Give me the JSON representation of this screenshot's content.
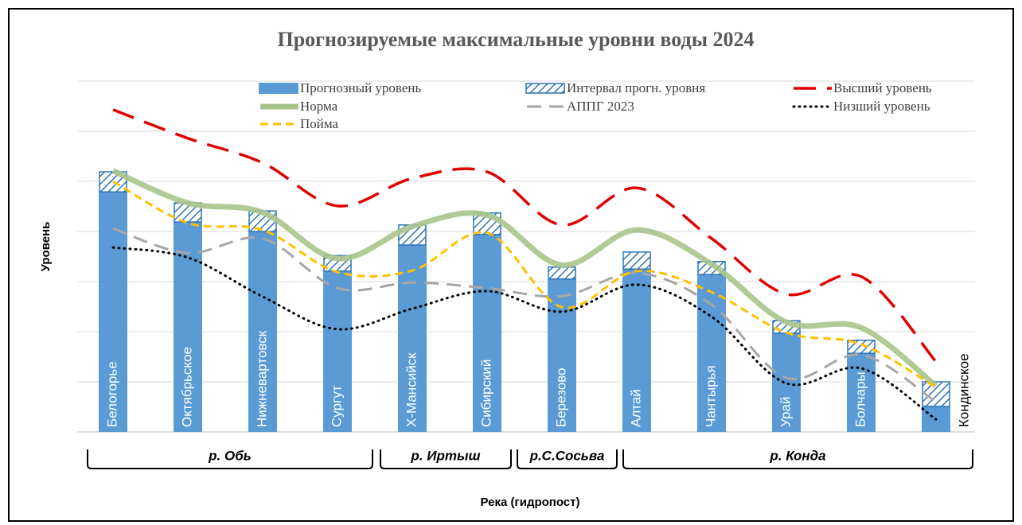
{
  "chart_data": {
    "type": "bar",
    "title": "Прогнозируемые максимальные уровни воды 2024",
    "x_label": "Река (гидропост)",
    "y_label": "Уровень",
    "categories": [
      "Белогорье",
      "Октябрьское",
      "Нижневартовск",
      "Сургут",
      "Х-Мансийск",
      "Сибирский",
      "Березово",
      "Алтай",
      "Чантырья",
      "Урай",
      "Болчары",
      "Кондинское"
    ],
    "groups": [
      {
        "label": "р. Обь"
      },
      {
        "label": "р. Иртыш"
      },
      {
        "label": "р.С.Сосьва"
      },
      {
        "label": "р. Конда"
      }
    ],
    "ylim": [
      0,
      7
    ],
    "yticks": [
      0,
      1,
      2,
      3,
      4,
      5,
      6,
      7
    ],
    "grid": true,
    "series": [
      {
        "name": "Прогнозный уровень",
        "type": "bar",
        "color": "#5b9bd5",
        "values": [
          4.79,
          4.19,
          4.0,
          3.21,
          3.73,
          3.94,
          3.05,
          3.25,
          3.14,
          1.97,
          1.57,
          0.51
        ]
      },
      {
        "name": "Интервал прогн. уровня",
        "type": "stacked-bar",
        "color": "#2e75b6",
        "values": [
          0.4,
          0.38,
          0.41,
          0.31,
          0.4,
          0.43,
          0.24,
          0.34,
          0.26,
          0.25,
          0.26,
          0.49
        ]
      },
      {
        "name": "Высший уровень",
        "type": "line",
        "color": "#e00000",
        "values": [
          6.43,
          5.86,
          5.37,
          4.51,
          5.06,
          5.19,
          4.13,
          4.87,
          3.86,
          2.75,
          3.1,
          1.4
        ]
      },
      {
        "name": "Норма",
        "type": "line",
        "color": "#a9c48b",
        "values": [
          5.21,
          4.57,
          4.38,
          3.46,
          4.1,
          4.33,
          3.33,
          4.03,
          3.35,
          2.19,
          2.08,
          0.92
        ]
      },
      {
        "name": "АППГ 2023",
        "type": "line",
        "color": "#a6a6a6",
        "values": [
          4.06,
          3.57,
          3.86,
          2.87,
          2.98,
          2.87,
          2.71,
          3.17,
          2.54,
          1.08,
          1.54,
          0.6
        ]
      },
      {
        "name": "Низший уровень",
        "type": "line",
        "color": "#000000",
        "values": [
          3.68,
          3.48,
          2.7,
          2.05,
          2.46,
          2.81,
          2.4,
          2.94,
          2.3,
          0.97,
          1.27,
          0.25
        ]
      },
      {
        "name": "Пойма",
        "type": "line",
        "color": "#ffc000",
        "values": [
          5.0,
          4.17,
          4.03,
          3.19,
          3.22,
          3.97,
          2.49,
          3.21,
          2.79,
          1.98,
          1.75,
          0.89
        ]
      }
    ]
  }
}
